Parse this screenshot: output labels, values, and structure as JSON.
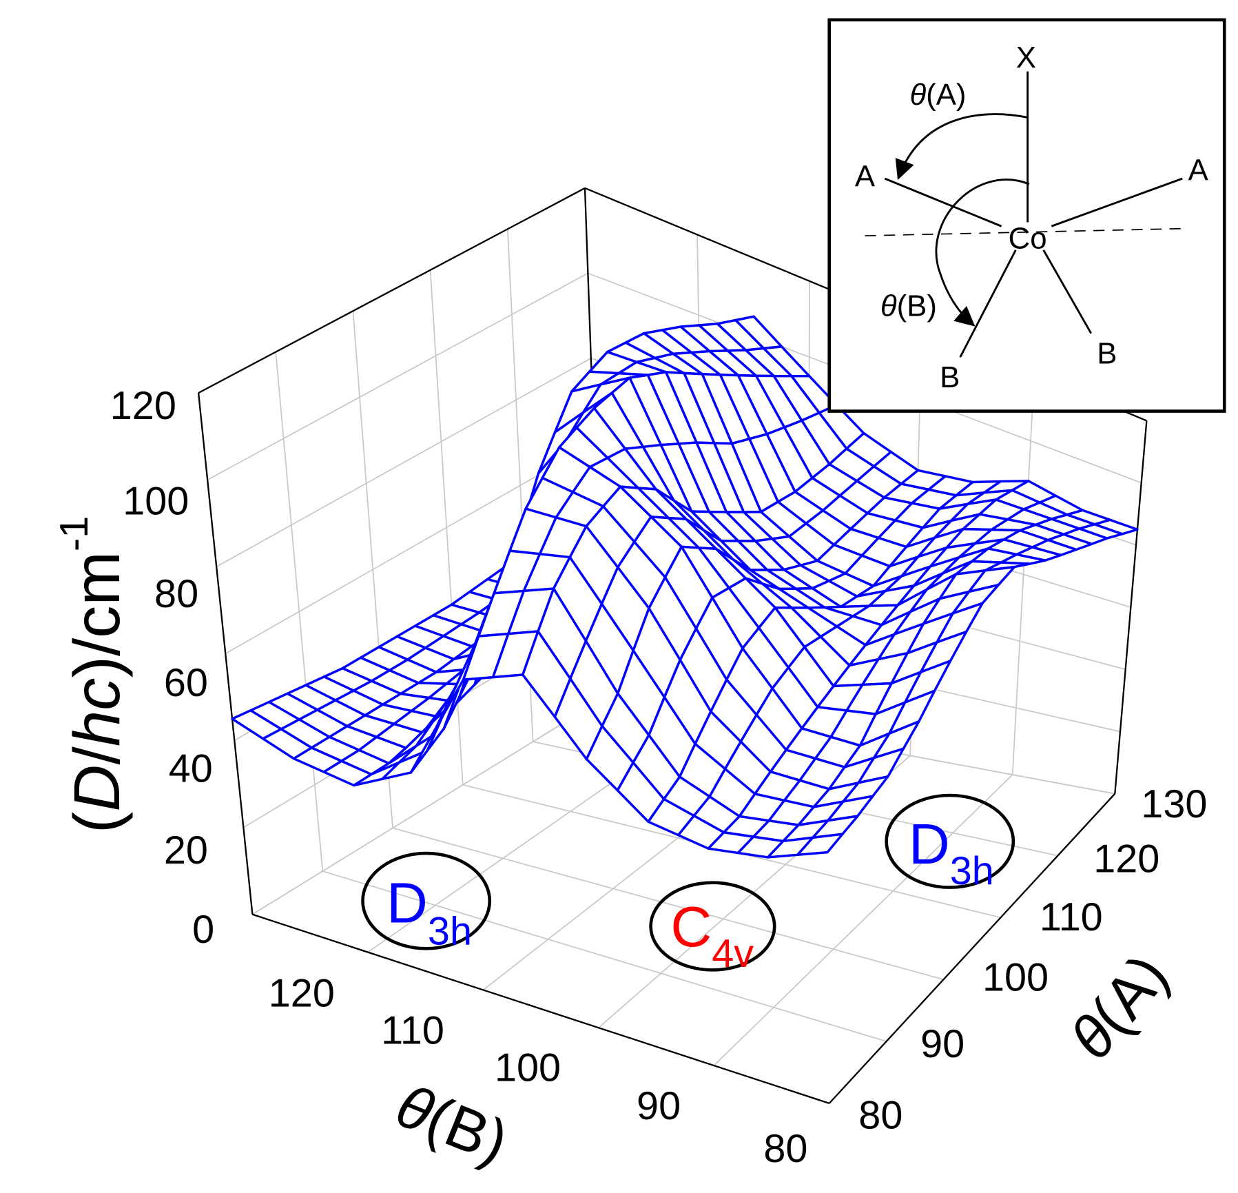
{
  "chart_data": {
    "type": "surface",
    "title": "",
    "zlabel": "(D/hc)/cm-1",
    "zlabel_parts": {
      "open": "(",
      "d": "D",
      "slash": "/",
      "hc": "hc",
      "close": ")/cm",
      "sup": "-1"
    },
    "xlabel": {
      "theta": "θ",
      "rest": "(B)"
    },
    "ylabel": {
      "theta": "θ",
      "rest": "(A)"
    },
    "x_axis": {
      "name": "θ(B)",
      "range": [
        80,
        130
      ],
      "ticks": [
        "120",
        "110",
        "100",
        "90",
        "80"
      ]
    },
    "y_axis": {
      "name": "θ(A)",
      "range": [
        80,
        130
      ],
      "ticks": [
        "80",
        "90",
        "100",
        "110",
        "120",
        "130"
      ]
    },
    "z_axis": {
      "range": [
        0,
        120
      ],
      "ticks": [
        "0",
        "20",
        "40",
        "60",
        "80",
        "100",
        "120"
      ]
    },
    "grid": true,
    "color": "#0000ff",
    "b_values": [
      80,
      85,
      90,
      95,
      100,
      105,
      110,
      115,
      120,
      125,
      130
    ],
    "a_values": [
      80,
      85,
      90,
      95,
      100,
      105,
      110,
      115,
      120,
      125,
      130
    ],
    "z_grid": [
      [
        55,
        50,
        48,
        50,
        60,
        75,
        70,
        45,
        38,
        40,
        45
      ],
      [
        58,
        52,
        50,
        55,
        70,
        90,
        85,
        50,
        38,
        40,
        44
      ],
      [
        62,
        55,
        55,
        65,
        85,
        100,
        100,
        60,
        40,
        40,
        43
      ],
      [
        70,
        60,
        60,
        75,
        95,
        105,
        110,
        75,
        42,
        40,
        42
      ],
      [
        80,
        70,
        65,
        80,
        90,
        100,
        115,
        95,
        45,
        40,
        42
      ],
      [
        90,
        80,
        70,
        75,
        80,
        90,
        118,
        110,
        50,
        41,
        42
      ],
      [
        95,
        88,
        75,
        70,
        75,
        85,
        115,
        115,
        55,
        42,
        42
      ],
      [
        92,
        90,
        80,
        70,
        72,
        80,
        110,
        115,
        60,
        43,
        43
      ],
      [
        90,
        90,
        85,
        75,
        75,
        80,
        105,
        112,
        60,
        44,
        44
      ],
      [
        88,
        88,
        88,
        80,
        78,
        82,
        100,
        108,
        60,
        45,
        45
      ],
      [
        85,
        85,
        88,
        82,
        80,
        85,
        95,
        105,
        60,
        45,
        45
      ]
    ],
    "annotations": [
      {
        "main": "D",
        "sub": "3h",
        "color": "#0000ff"
      },
      {
        "main": "C",
        "sub": "4v",
        "color": "#ff0000"
      },
      {
        "main": "D",
        "sub": "3h",
        "color": "#0000ff"
      }
    ]
  },
  "inset": {
    "x_label": "X",
    "a_left": "A",
    "a_right": "A",
    "center": "Co",
    "b_left": "B",
    "b_right": "B",
    "theta": "θ",
    "theta_a_rest": "(A)",
    "theta_b_rest": "(B)"
  }
}
